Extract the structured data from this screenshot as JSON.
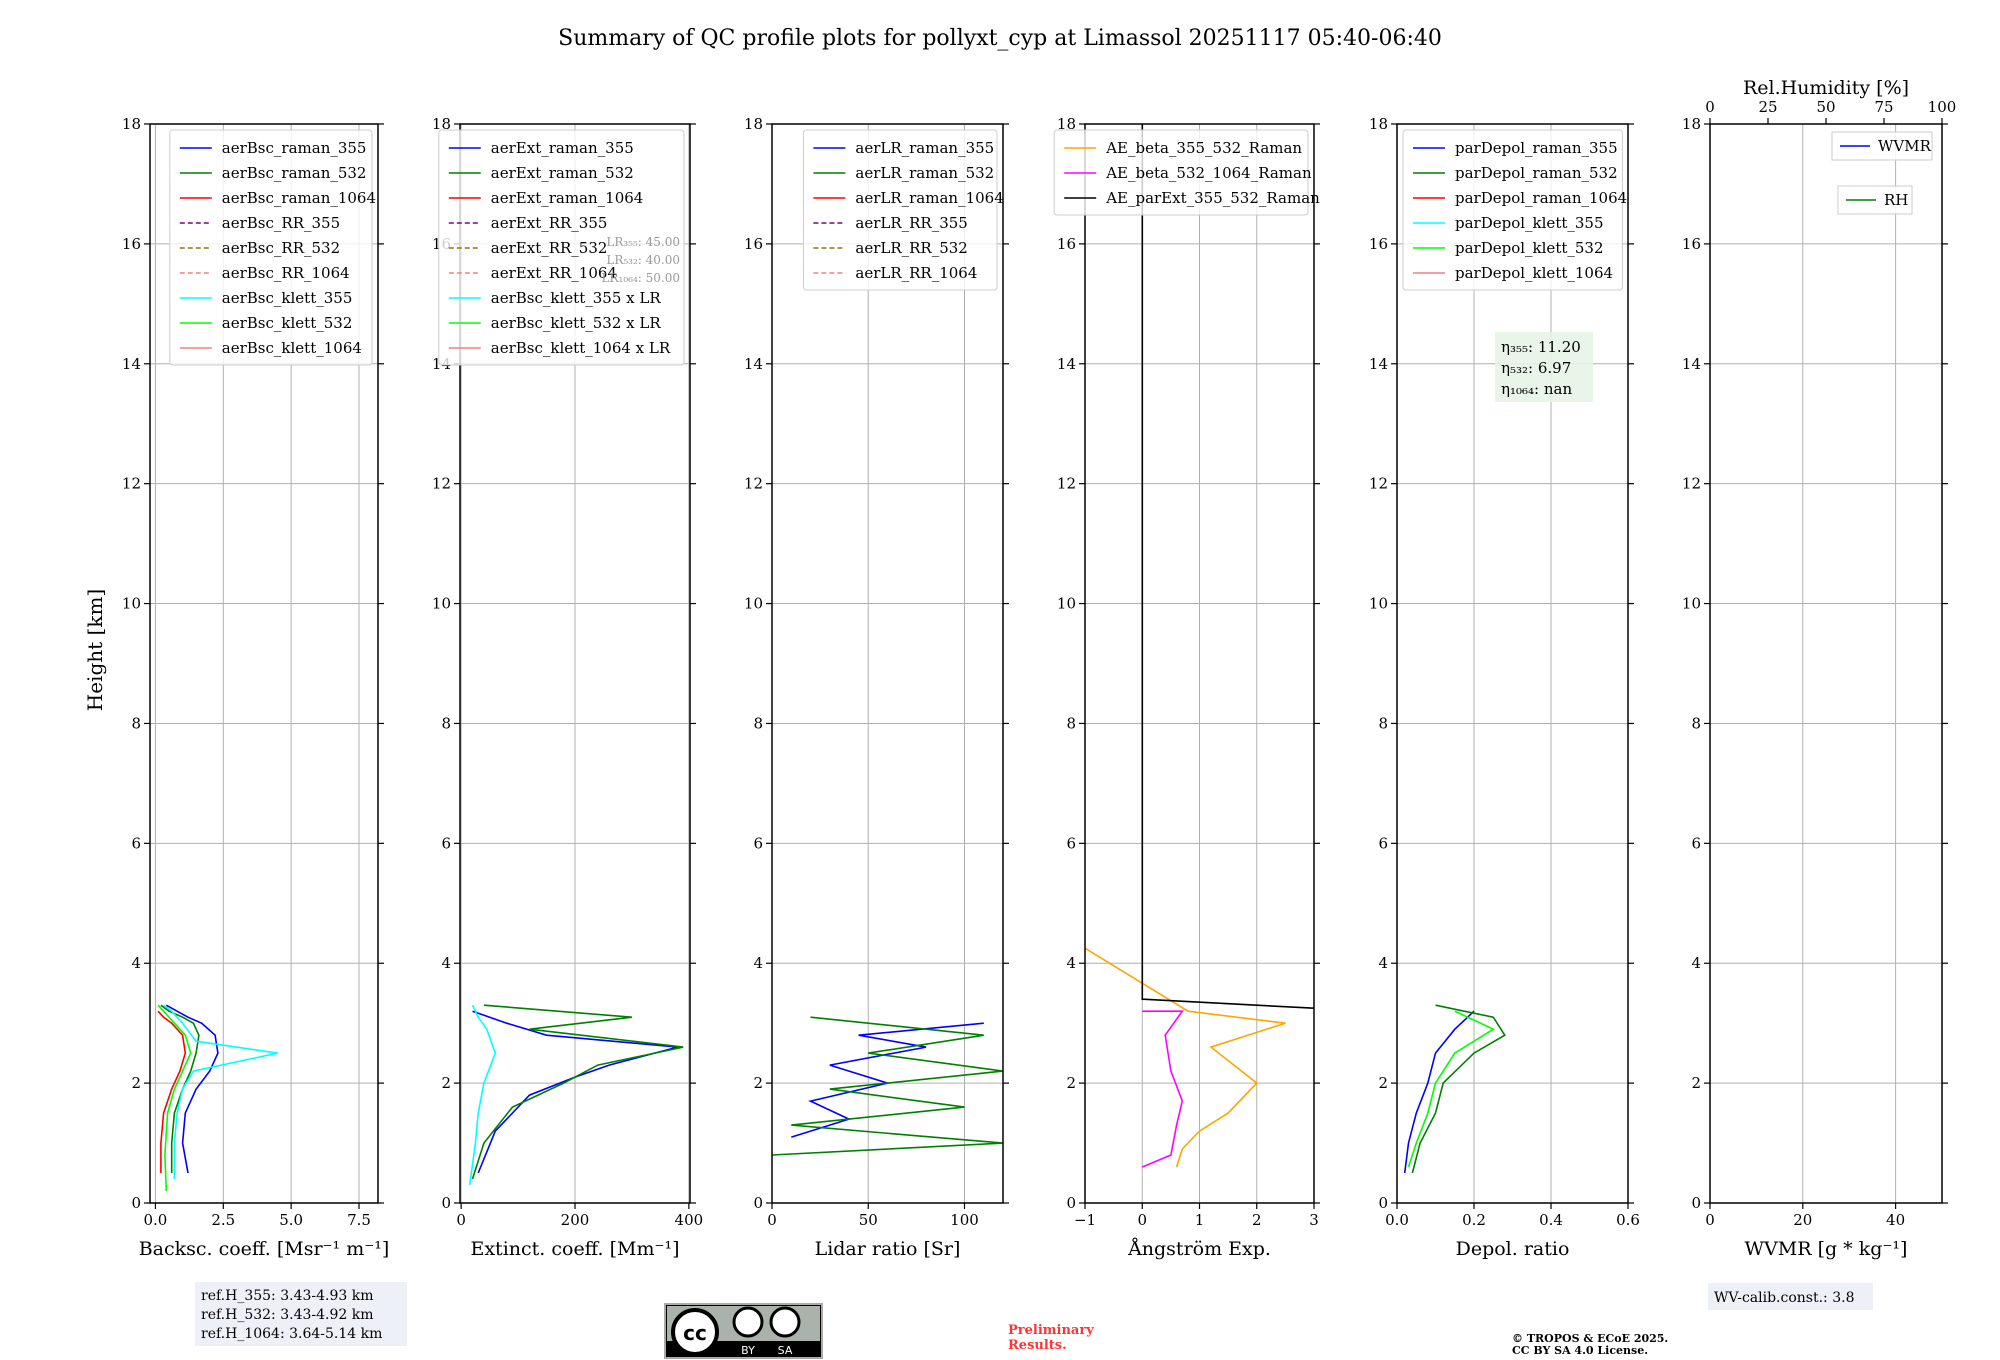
{
  "title": "Summary of QC profile plots for pollyxt_cyp at Limassol 20251117 05:40-06:40",
  "ylabel": "Height [km]",
  "ref_heights": [
    "ref.H_355: 3.43-4.93 km",
    "ref.H_532: 3.43-4.92 km",
    "ref.H_1064: 3.64-5.14 km"
  ],
  "license": {
    "cc": "cc",
    "by": "BY",
    "sa": "SA"
  },
  "preliminary": [
    "Preliminary",
    "Results."
  ],
  "copyright": [
    "© TROPOS & ECoE 2025.",
    "CC BY SA 4.0 License."
  ],
  "wv_calib": "WV-calib.const.: 3.8",
  "colors": {
    "blue": "#0000ff",
    "green": "#008000",
    "red": "#ff0000",
    "cyan": "#00ffff",
    "lime": "#00ff00",
    "salmon": "#f08080",
    "orange": "#ffa500",
    "magenta": "#ff00ff",
    "black": "#000000"
  },
  "chart_data": [
    {
      "type": "line",
      "xlabel": "Backsc. coeff. [Msr⁻¹ m⁻¹]",
      "xlim": [
        -0.2,
        8.2
      ],
      "ylim": [
        0,
        18
      ],
      "xticks": [
        0,
        2.5,
        5,
        7.5
      ],
      "xtick_labels": [
        "0.0",
        "2.5",
        "5.0",
        "7.5"
      ],
      "yticks": [
        0,
        2,
        4,
        6,
        8,
        10,
        12,
        14,
        16,
        18
      ],
      "legend_position": "top-right",
      "legend": [
        {
          "label": "aerBsc_raman_355",
          "color": "blue",
          "dash": false
        },
        {
          "label": "aerBsc_raman_532",
          "color": "green",
          "dash": false
        },
        {
          "label": "aerBsc_raman_1064",
          "color": "red",
          "dash": false
        },
        {
          "label": "aerBsc_RR_355",
          "color": "purple",
          "dash": true
        },
        {
          "label": "aerBsc_RR_532",
          "color": "olive",
          "dash": true
        },
        {
          "label": "aerBsc_RR_1064",
          "color": "salmon",
          "dash": true
        },
        {
          "label": "aerBsc_klett_355",
          "color": "cyan",
          "dash": false
        },
        {
          "label": "aerBsc_klett_532",
          "color": "lime",
          "dash": false
        },
        {
          "label": "aerBsc_klett_1064",
          "color": "salmon",
          "dash": false
        }
      ],
      "series": [
        {
          "name": "aerBsc_raman_355",
          "color": "blue",
          "x": [
            1.2,
            1.0,
            1.1,
            1.5,
            2.0,
            2.3,
            2.2,
            1.7,
            1.2,
            0.8,
            0.4
          ],
          "y": [
            0.5,
            1.0,
            1.5,
            1.9,
            2.2,
            2.5,
            2.8,
            3.0,
            3.1,
            3.2,
            3.3
          ]
        },
        {
          "name": "aerBsc_raman_532",
          "color": "green",
          "x": [
            0.6,
            0.6,
            0.7,
            1.0,
            1.3,
            1.5,
            1.6,
            1.4,
            1.0,
            0.5,
            0.2
          ],
          "y": [
            0.5,
            1.0,
            1.5,
            1.9,
            2.2,
            2.5,
            2.8,
            3.0,
            3.1,
            3.2,
            3.3
          ]
        },
        {
          "name": "aerBsc_raman_1064",
          "color": "red",
          "x": [
            0.2,
            0.2,
            0.3,
            0.6,
            0.9,
            1.1,
            1.0,
            0.6,
            0.3,
            0.1
          ],
          "y": [
            0.5,
            1.0,
            1.5,
            1.9,
            2.2,
            2.5,
            2.8,
            3.0,
            3.1,
            3.2
          ]
        },
        {
          "name": "aerBsc_klett_355",
          "color": "cyan",
          "x": [
            0.7,
            0.7,
            0.8,
            1.0,
            1.4,
            4.5,
            1.5,
            1.0,
            0.6,
            0.3
          ],
          "y": [
            0.4,
            1.0,
            1.5,
            1.9,
            2.2,
            2.5,
            2.7,
            3.0,
            3.2,
            3.3
          ]
        },
        {
          "name": "aerBsc_klett_532",
          "color": "lime",
          "x": [
            0.4,
            0.35,
            0.45,
            0.7,
            1.0,
            1.3,
            1.1,
            0.7,
            0.3,
            0.1
          ],
          "y": [
            0.2,
            0.8,
            1.5,
            1.9,
            2.2,
            2.5,
            2.8,
            3.0,
            3.2,
            3.3
          ]
        }
      ]
    },
    {
      "type": "line",
      "xlabel": "Extinct. coeff. [Mm⁻¹]",
      "xlim": [
        -2,
        402
      ],
      "ylim": [
        0,
        18
      ],
      "xticks": [
        0,
        200,
        400
      ],
      "xtick_labels": [
        "0",
        "200",
        "400"
      ],
      "yticks": [
        0,
        2,
        4,
        6,
        8,
        10,
        12,
        14,
        16,
        18
      ],
      "legend_position": "top-right",
      "lr_note": [
        "LR₃₅₅: 45.00",
        "LR₅₃₂: 40.00",
        "LR₁₀₆₄: 50.00"
      ],
      "legend": [
        {
          "label": "aerExt_raman_355",
          "color": "blue",
          "dash": false
        },
        {
          "label": "aerExt_raman_532",
          "color": "green",
          "dash": false
        },
        {
          "label": "aerExt_raman_1064",
          "color": "red",
          "dash": false
        },
        {
          "label": "aerExt_RR_355",
          "color": "purple",
          "dash": true
        },
        {
          "label": "aerExt_RR_532",
          "color": "olive",
          "dash": true
        },
        {
          "label": "aerExt_RR_1064",
          "color": "salmon",
          "dash": true
        },
        {
          "label": "aerBsc_klett_355 x LR",
          "color": "cyan",
          "dash": false
        },
        {
          "label": "aerBsc_klett_532 x LR",
          "color": "lime",
          "dash": false
        },
        {
          "label": "aerBsc_klett_1064 x LR",
          "color": "salmon",
          "dash": false
        }
      ],
      "series": [
        {
          "name": "aerExt_raman_355",
          "color": "blue",
          "x": [
            30,
            60,
            120,
            200,
            260,
            380,
            150,
            80,
            20
          ],
          "y": [
            0.5,
            1.2,
            1.8,
            2.1,
            2.3,
            2.6,
            2.8,
            3.0,
            3.2
          ]
        },
        {
          "name": "aerExt_raman_532",
          "color": "green",
          "x": [
            20,
            40,
            90,
            180,
            240,
            390,
            120,
            300,
            40
          ],
          "y": [
            0.4,
            1.0,
            1.6,
            2.0,
            2.3,
            2.6,
            2.9,
            3.1,
            3.3
          ]
        },
        {
          "name": "aerBsc_klett_355 x LR",
          "color": "cyan",
          "x": [
            15,
            25,
            30,
            40,
            60,
            45,
            30,
            20
          ],
          "y": [
            0.3,
            1.0,
            1.5,
            2.0,
            2.5,
            2.9,
            3.1,
            3.3
          ]
        }
      ]
    },
    {
      "type": "line",
      "xlabel": "Lidar ratio [Sr]",
      "xlim": [
        0,
        120
      ],
      "ylim": [
        0,
        18
      ],
      "xticks": [
        0,
        50,
        100
      ],
      "xtick_labels": [
        "0",
        "50",
        "100"
      ],
      "yticks": [
        0,
        2,
        4,
        6,
        8,
        10,
        12,
        14,
        16,
        18
      ],
      "legend_position": "top-right",
      "legend": [
        {
          "label": "aerLR_raman_355",
          "color": "blue",
          "dash": false
        },
        {
          "label": "aerLR_raman_532",
          "color": "green",
          "dash": false
        },
        {
          "label": "aerLR_raman_1064",
          "color": "red",
          "dash": false
        },
        {
          "label": "aerLR_RR_355",
          "color": "purple",
          "dash": true
        },
        {
          "label": "aerLR_RR_532",
          "color": "olive",
          "dash": true
        },
        {
          "label": "aerLR_RR_1064",
          "color": "salmon",
          "dash": true
        }
      ],
      "series": [
        {
          "name": "aerLR_raman_355",
          "color": "blue",
          "x": [
            10,
            40,
            20,
            60,
            30,
            80,
            45,
            110
          ],
          "y": [
            1.1,
            1.4,
            1.7,
            2.0,
            2.3,
            2.6,
            2.8,
            3.0
          ]
        },
        {
          "name": "aerLR_raman_532",
          "color": "green",
          "x": [
            0,
            120,
            10,
            100,
            30,
            120,
            50,
            110,
            20
          ],
          "y": [
            0.8,
            1.0,
            1.3,
            1.6,
            1.9,
            2.2,
            2.5,
            2.8,
            3.1
          ]
        }
      ]
    },
    {
      "type": "line",
      "xlabel": "Ångström Exp.",
      "xlim": [
        -1,
        3
      ],
      "ylim": [
        0,
        18
      ],
      "xticks": [
        -1,
        0,
        1,
        2,
        3
      ],
      "xtick_labels": [
        "−1",
        "0",
        "1",
        "2",
        "3"
      ],
      "yticks": [
        0,
        2,
        4,
        6,
        8,
        10,
        12,
        14,
        16,
        18
      ],
      "legend_position": "top-right",
      "legend": [
        {
          "label": "AE_beta_355_532_Raman",
          "color": "orange",
          "dash": false
        },
        {
          "label": "AE_beta_532_1064_Raman",
          "color": "magenta",
          "dash": false
        },
        {
          "label": "AE_parExt_355_532_Raman",
          "color": "black",
          "dash": false
        }
      ],
      "series": [
        {
          "name": "AE_beta_355_532_Raman",
          "color": "orange",
          "x": [
            0.6,
            0.7,
            1.0,
            1.5,
            2.0,
            1.2,
            2.5,
            0.8,
            -1.0
          ],
          "y": [
            0.6,
            0.9,
            1.2,
            1.5,
            2.0,
            2.6,
            3.0,
            3.2,
            4.25
          ]
        },
        {
          "name": "AE_beta_532_1064_Raman",
          "color": "magenta",
          "x": [
            0,
            0.5,
            0.6,
            0.7,
            0.5,
            0.4,
            0.7,
            0
          ],
          "y": [
            0.6,
            0.8,
            1.3,
            1.7,
            2.2,
            2.8,
            3.2,
            3.2
          ]
        },
        {
          "name": "AE_parExt_355_532_Raman",
          "color": "black",
          "x": [
            0,
            0,
            3.0
          ],
          "y": [
            18,
            3.4,
            3.25
          ]
        }
      ]
    },
    {
      "type": "line",
      "xlabel": "Depol. ratio",
      "xlim": [
        0,
        0.6
      ],
      "ylim": [
        0,
        18
      ],
      "xticks": [
        0,
        0.2,
        0.4,
        0.6
      ],
      "xtick_labels": [
        "0.0",
        "0.2",
        "0.4",
        "0.6"
      ],
      "yticks": [
        0,
        2,
        4,
        6,
        8,
        10,
        12,
        14,
        16,
        18
      ],
      "legend_position": "top-left",
      "eta": [
        "η₃₅₅: 11.20",
        "η₅₃₂: 6.97",
        "η₁₀₆₄: nan"
      ],
      "legend": [
        {
          "label": "parDepol_raman_355",
          "color": "blue",
          "dash": false
        },
        {
          "label": "parDepol_raman_532",
          "color": "green",
          "dash": false
        },
        {
          "label": "parDepol_raman_1064",
          "color": "red",
          "dash": false
        },
        {
          "label": "parDepol_klett_355",
          "color": "cyan",
          "dash": false
        },
        {
          "label": "parDepol_klett_532",
          "color": "lime",
          "dash": false
        },
        {
          "label": "parDepol_klett_1064",
          "color": "salmon",
          "dash": false
        }
      ],
      "series": [
        {
          "name": "parDepol_raman_355",
          "color": "blue",
          "x": [
            0.02,
            0.03,
            0.05,
            0.08,
            0.1,
            0.15,
            0.2
          ],
          "y": [
            0.5,
            1.0,
            1.5,
            2.0,
            2.5,
            2.9,
            3.2
          ]
        },
        {
          "name": "parDepol_raman_532",
          "color": "green",
          "x": [
            0.04,
            0.06,
            0.1,
            0.12,
            0.2,
            0.28,
            0.25,
            0.1
          ],
          "y": [
            0.5,
            1.0,
            1.5,
            2.0,
            2.5,
            2.8,
            3.1,
            3.3
          ]
        },
        {
          "name": "parDepol_klett_532",
          "color": "lime",
          "x": [
            0.03,
            0.05,
            0.08,
            0.1,
            0.15,
            0.25,
            0.15
          ],
          "y": [
            0.6,
            1.0,
            1.5,
            2.0,
            2.5,
            2.9,
            3.2
          ]
        }
      ]
    },
    {
      "type": "line",
      "xlabel": "WVMR [g * kg⁻¹]",
      "x2label": "Rel.Humidity [%]",
      "xlim": [
        0,
        50
      ],
      "ylim": [
        0,
        18
      ],
      "xticks": [
        0,
        20,
        40
      ],
      "xtick_labels": [
        "0",
        "20",
        "40"
      ],
      "x2lim": [
        0,
        100
      ],
      "x2ticks": [
        0,
        25,
        50,
        75,
        100
      ],
      "x2tick_labels": [
        "0",
        "25",
        "50",
        "75",
        "100"
      ],
      "yticks": [
        0,
        2,
        4,
        6,
        8,
        10,
        12,
        14,
        16,
        18
      ],
      "legend": [
        {
          "label": "WVMR",
          "color": "blue",
          "dash": false
        },
        {
          "label": "RH",
          "color": "green",
          "dash": false
        }
      ],
      "series": []
    }
  ]
}
